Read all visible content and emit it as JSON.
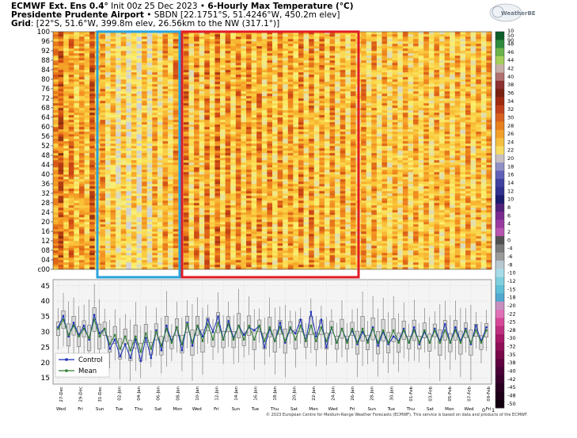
{
  "header": {
    "model": "ECMWF Ext. Ens 0.4°",
    "init": "Init 00z 25 Dec 2023",
    "bullet": "•",
    "product": "6-Hourly Max Temperature (°C)",
    "station": "Presidente Prudente Airport",
    "station_meta": "• SBDN [22.1751°S, 51.4246°W, 450.2m elev]",
    "grid_label": "Grid",
    "grid_meta": ": [22°S, 51.6°W, 399.8m elev, 26.56km to the NW (317.1°)]"
  },
  "logo": {
    "text": "WeatherBELL",
    "icon": "weatherbell-logo"
  },
  "copyright": "© 2023 European Centre for Medium-Range Weather Forecasts (ECMWF). This service is based on data and products of the ECMWF.",
  "colors": {
    "control": "#1a2fb8",
    "mean": "#2e7d32",
    "highlight_blue": "#29a3dc",
    "highlight_red": "#e01b24"
  },
  "chart_data": [
    {
      "type": "heatmap",
      "ylabel_ticks": [
        "c00",
        "04",
        "08",
        "12",
        "16",
        "20",
        "24",
        "28",
        "32",
        "36",
        "40",
        "44",
        "48",
        "52",
        "56",
        "60",
        "64",
        "68",
        "72",
        "76",
        "80",
        "84",
        "88",
        "92",
        "96",
        "100"
      ],
      "members": 100,
      "columns": 84,
      "highlights": [
        {
          "color": "blue",
          "from_date": "Dec 29",
          "to_date": "Jan 08"
        },
        {
          "color": "red",
          "from_date": "Jan 08",
          "to_date": "Jan 27"
        }
      ]
    },
    {
      "type": "colorbar",
      "labels": [
        "50",
        "48",
        "46",
        "44",
        "42",
        "40",
        "38",
        "36",
        "34",
        "32",
        "30",
        "28",
        "26",
        "24",
        "22",
        "20",
        "18",
        "16",
        "14",
        "12",
        "10",
        "8",
        "6",
        "4",
        "2",
        "0",
        "-4",
        "-6",
        "-8",
        "-10",
        "-12",
        "-15",
        "-18",
        "-20",
        "-22",
        "-25",
        "-28",
        "-30",
        "-32",
        "-35",
        "-38",
        "-40",
        "-42",
        "-45",
        "-48",
        "-50"
      ],
      "top_labels": [
        "10",
        "90"
      ],
      "bottom_ticks": [
        "0",
        "1"
      ]
    },
    {
      "type": "line",
      "ylim": [
        13,
        47
      ],
      "yticks": [
        15,
        20,
        25,
        30,
        35,
        40,
        45
      ],
      "grid": true,
      "legend_position": "bottom-left",
      "series": [
        {
          "name": "Control",
          "values": [
            31.5,
            35.2,
            28.5,
            33.0,
            29.0,
            32.0,
            27.5,
            35.5,
            29.5,
            31.0,
            24.5,
            27.5,
            22.0,
            26.0,
            21.5,
            27.5,
            20.5,
            28.0,
            21.5,
            30.5,
            24.0,
            32.0,
            27.0,
            31.5,
            24.0,
            33.0,
            25.5,
            32.0,
            28.5,
            34.0,
            30.0,
            35.0,
            27.5,
            33.5,
            28.0,
            32.0,
            29.0,
            31.5,
            30.5,
            32.0,
            25.0,
            31.0,
            27.0,
            33.0,
            26.5,
            31.0,
            29.5,
            34.0,
            27.0,
            36.5,
            28.5,
            34.0,
            25.0,
            31.5,
            26.5,
            31.0,
            27.0,
            30.5,
            26.0,
            30.0,
            27.0,
            31.5,
            25.5,
            30.0,
            26.0,
            28.5,
            27.0,
            31.0,
            26.5,
            31.5,
            26.0,
            30.0,
            26.5,
            31.0,
            27.0,
            32.5,
            26.5,
            31.5,
            27.0,
            31.0,
            26.0,
            32.0,
            27.0,
            31.5
          ]
        },
        {
          "name": "Mean",
          "values": [
            31.0,
            34.0,
            29.0,
            32.0,
            28.5,
            31.0,
            28.0,
            34.0,
            28.5,
            31.0,
            26.0,
            29.0,
            24.5,
            28.5,
            24.0,
            28.5,
            23.5,
            29.5,
            24.5,
            30.0,
            25.5,
            31.0,
            26.5,
            31.5,
            26.0,
            32.5,
            26.5,
            32.0,
            27.0,
            32.5,
            27.5,
            33.0,
            27.5,
            32.5,
            27.5,
            32.0,
            27.5,
            32.0,
            27.5,
            32.0,
            27.0,
            31.5,
            27.0,
            31.5,
            27.0,
            31.5,
            27.5,
            32.0,
            27.0,
            32.0,
            27.0,
            31.5,
            27.0,
            31.5,
            26.5,
            31.0,
            26.5,
            31.0,
            26.5,
            31.0,
            26.5,
            31.0,
            26.5,
            30.5,
            26.5,
            30.5,
            26.5,
            30.5,
            26.5,
            30.5,
            26.5,
            30.5,
            26.5,
            30.5,
            26.5,
            30.5,
            26.5,
            30.5,
            26.5,
            30.5,
            26.5,
            30.5,
            26.5,
            30.5
          ]
        }
      ],
      "x_date_labels": [
        "27-Dec",
        "29-Dec",
        "31-Dec",
        "02-Jan",
        "04-Jan",
        "06-Jan",
        "08-Jan",
        "10-Jan",
        "12-Jan",
        "14-Jan",
        "16-Jan",
        "18-Jan",
        "20-Jan",
        "22-Jan",
        "24-Jan",
        "26-Jan",
        "28-Jan",
        "30-Jan",
        "01-Feb",
        "03-Feb",
        "05-Feb",
        "07-Feb",
        "09-Feb"
      ],
      "x_day_labels": [
        "Wed",
        "Fri",
        "Sun",
        "Tue",
        "Thu",
        "Sat",
        "Mon",
        "Wed",
        "Fri",
        "Sun",
        "Tue",
        "Thu",
        "Sat",
        "Mon",
        "Wed",
        "Fri",
        "Sun",
        "Tue",
        "Thu",
        "Sat",
        "Mon",
        "Wed",
        "Fri"
      ]
    }
  ]
}
